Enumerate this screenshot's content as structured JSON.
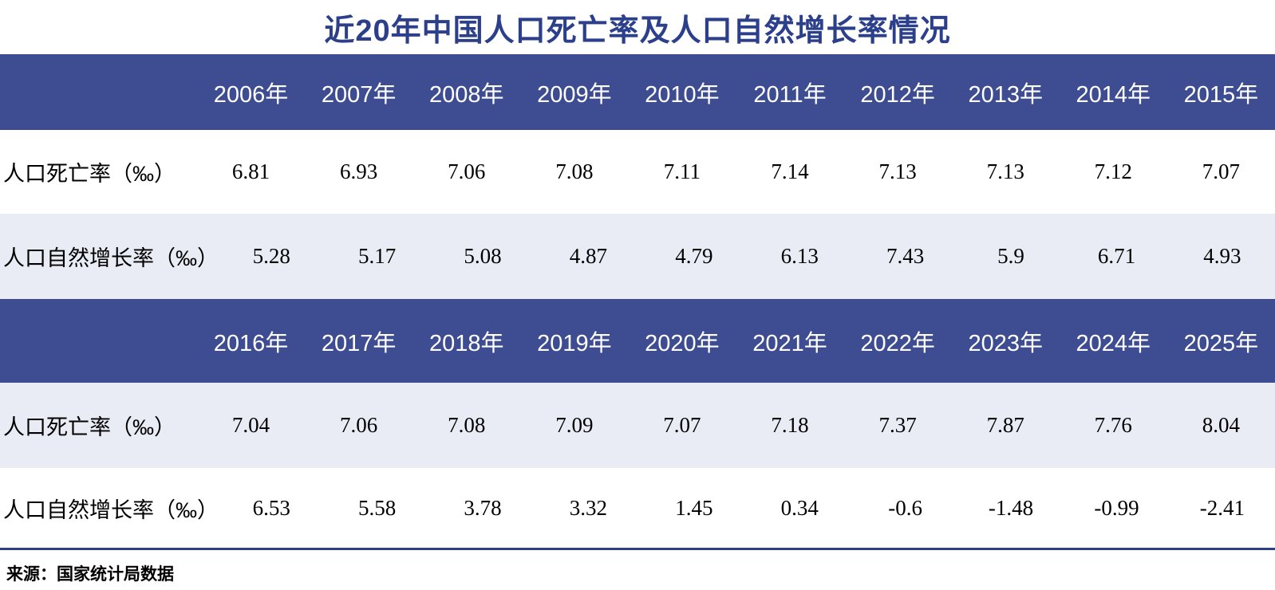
{
  "title": "近20年中国人口死亡率及人口自然增长率情况",
  "source_note": "来源：国家统计局数据",
  "colors": {
    "title_text": "#2c3f8a",
    "header_bg": "#3e4d92",
    "header_text": "#ffffff",
    "row_white_bg": "#ffffff",
    "row_alt_bg": "#e9ecf5",
    "data_text": "#000000",
    "bottom_rule": "#2e3f8a"
  },
  "chart_data": {
    "type": "table",
    "title": "近20年中国人口死亡率及人口自然增长率情况",
    "source": "来源：国家统计局数据",
    "unit": "‰",
    "sections": [
      {
        "years": [
          "2006年",
          "2007年",
          "2008年",
          "2009年",
          "2010年",
          "2011年",
          "2012年",
          "2013年",
          "2014年",
          "2015年"
        ],
        "rows": [
          {
            "label": "人口死亡率（‰）",
            "bg": "white",
            "values": [
              "6.81",
              "6.93",
              "7.06",
              "7.08",
              "7.11",
              "7.14",
              "7.13",
              "7.13",
              "7.12",
              "7.07"
            ]
          },
          {
            "label": "人口自然增长率（‰）",
            "bg": "alt",
            "values": [
              "5.28",
              "5.17",
              "5.08",
              "4.87",
              "4.79",
              "6.13",
              "7.43",
              "5.9",
              "6.71",
              "4.93"
            ]
          }
        ]
      },
      {
        "years": [
          "2016年",
          "2017年",
          "2018年",
          "2019年",
          "2020年",
          "2021年",
          "2022年",
          "2023年",
          "2024年",
          "2025年"
        ],
        "rows": [
          {
            "label": "人口死亡率（‰）",
            "bg": "alt",
            "values": [
              "7.04",
              "7.06",
              "7.08",
              "7.09",
              "7.07",
              "7.18",
              "7.37",
              "7.87",
              "7.76",
              "8.04"
            ]
          },
          {
            "label": "人口自然增长率（‰）",
            "bg": "white",
            "values": [
              "6.53",
              "5.58",
              "3.78",
              "3.32",
              "1.45",
              "0.34",
              "-0.6",
              "-1.48",
              "-0.99",
              "-2.41"
            ]
          }
        ]
      }
    ]
  }
}
